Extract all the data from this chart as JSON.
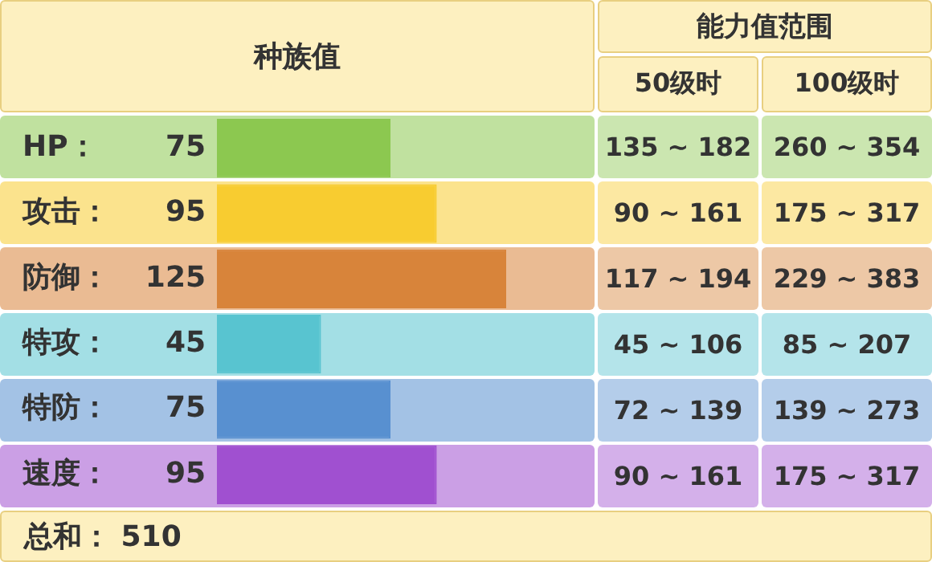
{
  "chart_data": {
    "type": "bar",
    "orientation": "horizontal",
    "categories": [
      "HP",
      "攻击",
      "防御",
      "特攻",
      "特防",
      "速度"
    ],
    "values": [
      75,
      95,
      125,
      45,
      75,
      95
    ],
    "colors": [
      "#8cc850",
      "#f8cc30",
      "#d8843a",
      "#58c4d0",
      "#5890d0",
      "#a050d0"
    ],
    "data_labels": true,
    "legend": false,
    "tick_labels": false,
    "annotations": [
      "种族值",
      "能力值范围",
      "50级时",
      "100级时",
      "135 ~ 182",
      "260 ~ 354",
      "90 ~ 161",
      "175 ~ 317",
      "117 ~ 194",
      "229 ~ 383",
      "45 ~ 106",
      "85 ~ 207",
      "72 ~ 139",
      "139 ~ 273",
      "90 ~ 161",
      "175 ~ 317",
      "总和：  510",
      "："
    ]
  }
}
